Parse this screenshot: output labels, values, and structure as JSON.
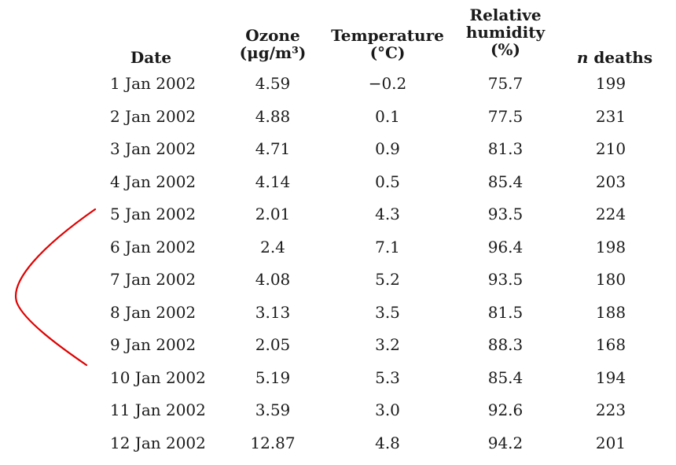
{
  "headers": {
    "date": [
      "Date"
    ],
    "ozone": [
      "Ozone",
      "(μg/m³)"
    ],
    "temperature": [
      "Temperature",
      "(°C)"
    ],
    "humidity": [
      "Relative",
      "humidity",
      "(%)"
    ],
    "deaths_prefix": "n",
    "deaths_label": " deaths"
  },
  "rows": [
    {
      "date": "1 Jan 2002",
      "ozone": "4.59",
      "temperature": "−0.2",
      "humidity": "75.7",
      "deaths": "199"
    },
    {
      "date": "2 Jan 2002",
      "ozone": "4.88",
      "temperature": "0.1",
      "humidity": "77.5",
      "deaths": "231"
    },
    {
      "date": "3 Jan 2002",
      "ozone": "4.71",
      "temperature": "0.9",
      "humidity": "81.3",
      "deaths": "210"
    },
    {
      "date": "4 Jan 2002",
      "ozone": "4.14",
      "temperature": "0.5",
      "humidity": "85.4",
      "deaths": "203"
    },
    {
      "date": "5 Jan 2002",
      "ozone": "2.01",
      "temperature": "4.3",
      "humidity": "93.5",
      "deaths": "224"
    },
    {
      "date": "6 Jan 2002",
      "ozone": "2.4",
      "temperature": "7.1",
      "humidity": "96.4",
      "deaths": "198"
    },
    {
      "date": "7 Jan 2002",
      "ozone": "4.08",
      "temperature": "5.2",
      "humidity": "93.5",
      "deaths": "180"
    },
    {
      "date": "8 Jan 2002",
      "ozone": "3.13",
      "temperature": "3.5",
      "humidity": "81.5",
      "deaths": "188"
    },
    {
      "date": "9 Jan 2002",
      "ozone": "2.05",
      "temperature": "3.2",
      "humidity": "88.3",
      "deaths": "168"
    },
    {
      "date": "10 Jan 2002",
      "ozone": "5.19",
      "temperature": "5.3",
      "humidity": "85.4",
      "deaths": "194"
    },
    {
      "date": "11 Jan 2002",
      "ozone": "3.59",
      "temperature": "3.0",
      "humidity": "92.6",
      "deaths": "223"
    },
    {
      "date": "12 Jan 2002",
      "ozone": "12.87",
      "temperature": "4.8",
      "humidity": "94.2",
      "deaths": "201"
    }
  ],
  "annotation": {
    "bracket_color": "#e00000",
    "bracket_from_row": "5 Jan 2002",
    "bracket_to_row": "10 Jan 2002"
  }
}
